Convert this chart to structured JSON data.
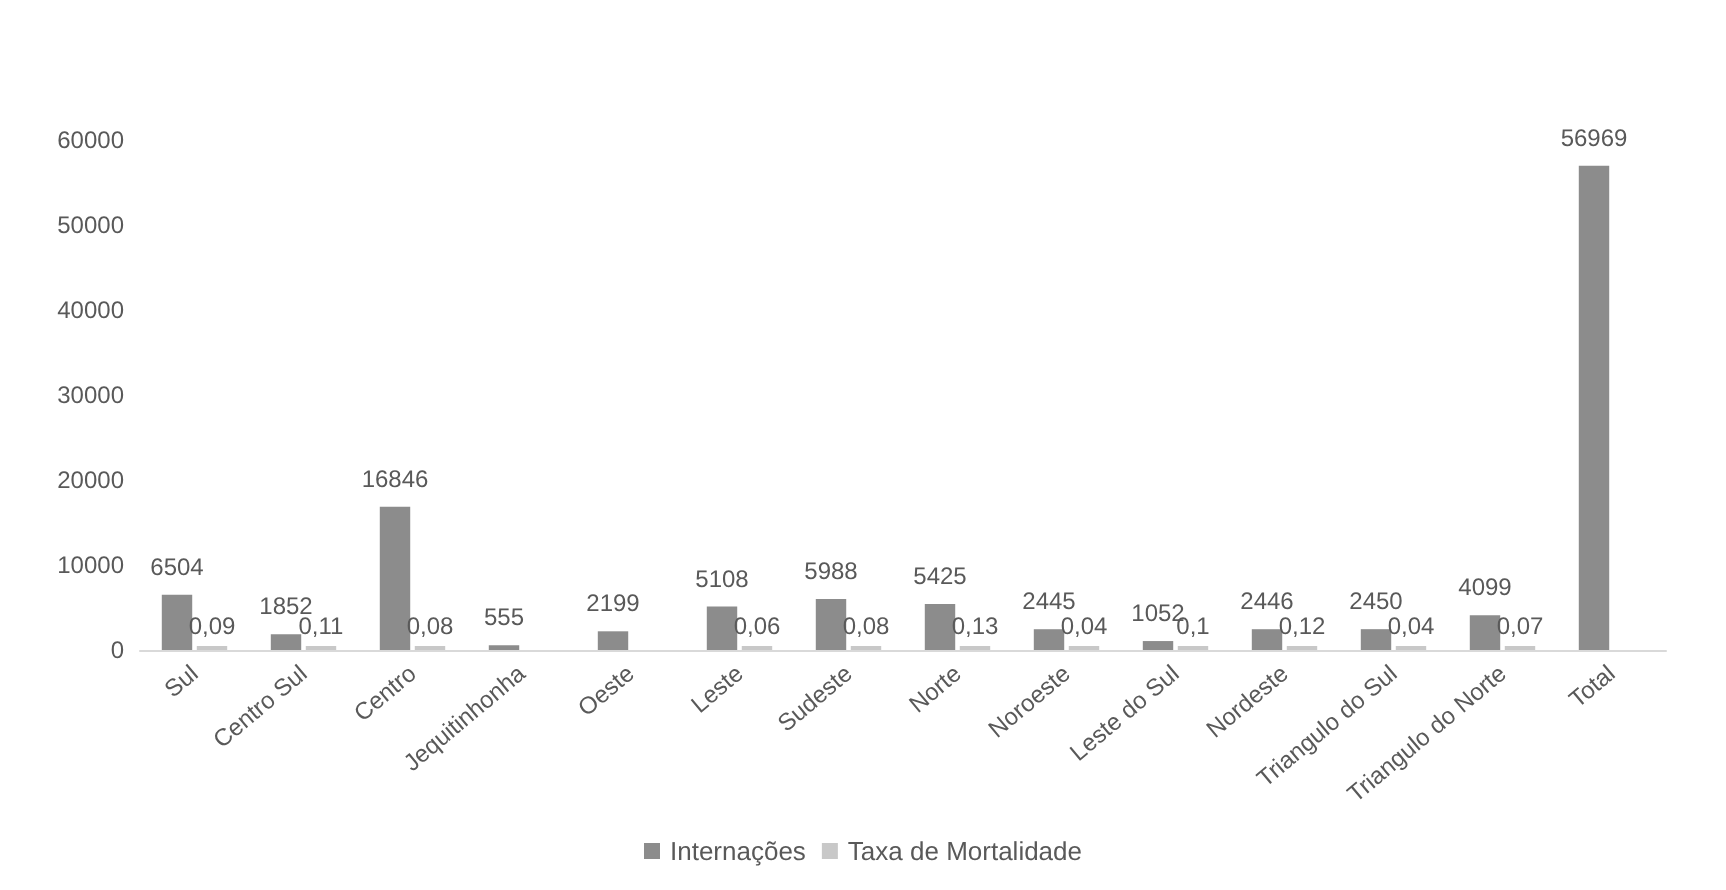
{
  "chart_data": {
    "type": "bar",
    "categories": [
      "Sul",
      "Centro Sul",
      "Centro",
      "Jequitinhonha",
      "Oeste",
      "Leste",
      "Sudeste",
      "Norte",
      "Noroeste",
      "Leste do Sul",
      "Nordeste",
      "Triangulo do Sul",
      "Triangulo do Norte",
      "Total"
    ],
    "series": [
      {
        "name": "Internações",
        "color": "#8c8c8c",
        "values": [
          6504,
          1852,
          16846,
          555,
          2199,
          5108,
          5988,
          5425,
          2445,
          1052,
          2446,
          2450,
          4099,
          56969
        ],
        "value_labels": [
          "6504",
          "1852",
          "16846",
          "555",
          "2199",
          "5108",
          "5988",
          "5425",
          "2445",
          "1052",
          "2446",
          "2450",
          "4099",
          "56969"
        ]
      },
      {
        "name": "Taxa de Mortalidade",
        "color": "#c8c8c8",
        "values": [
          0.09,
          0.11,
          0.08,
          null,
          null,
          0.06,
          0.08,
          0.13,
          0.04,
          0.1,
          0.12,
          0.04,
          0.07,
          null
        ],
        "value_labels": [
          "0,09",
          "0,11",
          "0,08",
          null,
          null,
          "0,06",
          "0,08",
          "0,13",
          "0,04",
          "0,1",
          "0,12",
          "0,04",
          "0,07",
          null
        ]
      }
    ],
    "ylim": [
      0,
      60000
    ],
    "yticks": [
      0,
      10000,
      20000,
      30000,
      40000,
      50000,
      60000
    ],
    "grid": false,
    "legend": "bottom"
  }
}
